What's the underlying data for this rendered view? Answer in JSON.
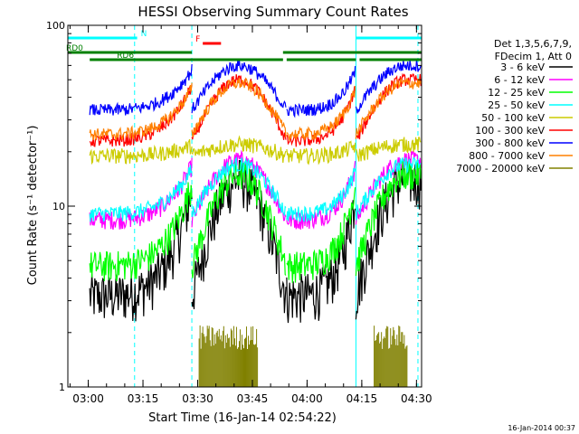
{
  "chart_data": {
    "type": "line",
    "title": "HESSI Observing Summary Count Rates",
    "xlabel": "Start Time (16-Jan-14 02:54:22)",
    "ylabel": "Count Rate (s⁻¹ detector⁻¹)",
    "yscale": "log",
    "ylim": [
      1,
      100
    ],
    "xlim_minutes": [
      0,
      97
    ],
    "x_ticks": [
      {
        "label": "03:00",
        "min": 5.6
      },
      {
        "label": "03:15",
        "min": 20.6
      },
      {
        "label": "03:30",
        "min": 35.6
      },
      {
        "label": "03:45",
        "min": 50.6
      },
      {
        "label": "04:00",
        "min": 65.6
      },
      {
        "label": "04:15",
        "min": 80.6
      },
      {
        "label": "04:30",
        "min": 95.6
      }
    ],
    "y_ticks": [
      {
        "label": "1",
        "value": 1
      },
      {
        "label": "10",
        "value": 10
      },
      {
        "label": "100",
        "value": 100
      }
    ],
    "legend_header": [
      "Det 1,3,5,6,7,9,",
      "FDecim 1, Att 0"
    ],
    "legend_position": "right",
    "footer_stamp": "16-Jan-2014 00:37",
    "series": [
      {
        "name": "3 - 6 keV",
        "color": "#000000",
        "base": 3.2,
        "peak": 14,
        "noise": 0.16
      },
      {
        "name": "6 - 12 keV",
        "color": "#ff00ff",
        "base": 8.4,
        "peak": 18,
        "noise": 0.06
      },
      {
        "name": "12 - 25 keV",
        "color": "#00ff00",
        "base": 4.7,
        "peak": 15,
        "noise": 0.1
      },
      {
        "name": "25 - 50 keV",
        "color": "#00ffff",
        "base": 9.1,
        "peak": 17,
        "noise": 0.05
      },
      {
        "name": "50 - 100 keV",
        "color": "#cccc00",
        "base": 19,
        "peak": 22,
        "noise": 0.05
      },
      {
        "name": "100 - 300 keV",
        "color": "#ff0000",
        "base": 23,
        "peak": 50,
        "noise": 0.04
      },
      {
        "name": "300 - 800 keV",
        "color": "#0000ff",
        "base": 34,
        "peak": 60,
        "noise": 0.04
      },
      {
        "name": "800 - 7000 keV",
        "color": "#ff8000",
        "base": 25,
        "peak": 48,
        "noise": 0.04
      },
      {
        "name": "7000 - 20000 keV",
        "color": "#808000",
        "base": 1.0,
        "peak": 2.0,
        "noise": 0.0
      }
    ],
    "segments": [
      {
        "start": 6,
        "end": 34
      },
      {
        "start": 34,
        "end": 60
      },
      {
        "start": 60,
        "end": 79
      },
      {
        "start": 79,
        "end": 97
      }
    ],
    "flag_bars": [
      {
        "label": "N",
        "color": "#00ffff",
        "ranges": [
          [
            0,
            19
          ],
          [
            79,
            97
          ]
        ],
        "level": 1
      },
      {
        "label": "F",
        "color": "#ff0000",
        "ranges": [
          [
            37,
            42
          ]
        ],
        "level": 2
      },
      {
        "label": "RD0",
        "color": "#008000",
        "ranges": [
          [
            0,
            34
          ],
          [
            59,
            79
          ],
          [
            79,
            97
          ]
        ],
        "level": 3
      },
      {
        "label": "RD6",
        "color": "#008000",
        "ranges": [
          [
            6,
            34
          ],
          [
            34,
            59
          ],
          [
            60,
            79
          ],
          [
            80,
            97
          ]
        ],
        "level": 4
      }
    ],
    "vlines": [
      {
        "min": 0,
        "style": "solid"
      },
      {
        "min": 18.3,
        "style": "dashed"
      },
      {
        "min": 34,
        "style": "dashed"
      },
      {
        "min": 79,
        "style": "solid"
      },
      {
        "min": 96,
        "style": "dashed"
      }
    ],
    "grid": false
  }
}
